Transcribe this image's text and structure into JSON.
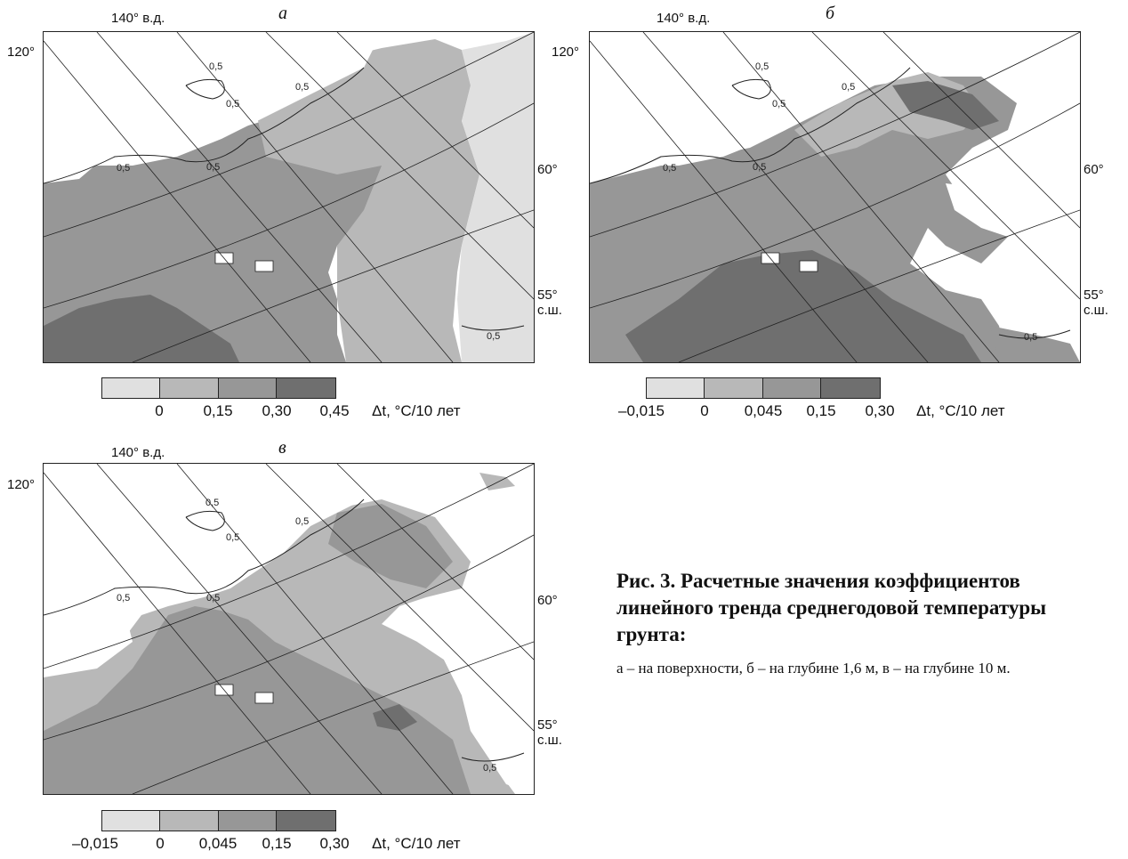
{
  "panels": [
    {
      "letter": "а",
      "lon_label": "140° в.д.",
      "lat_top": "120°",
      "lat_mid": "60°",
      "lat_bottom_1": "55°",
      "lat_bottom_2": "с.ш.",
      "contour_label": "0,5",
      "legend_ticks": [
        "0",
        "0,15",
        "0,30",
        "0,45"
      ],
      "unit": "Δt, °C/10 лет"
    },
    {
      "letter": "б",
      "lon_label": "140° в.д.",
      "lat_top": "120°",
      "lat_mid": "60°",
      "lat_bottom_1": "55°",
      "lat_bottom_2": "с.ш.",
      "contour_label": "0,5",
      "legend_ticks": [
        "–0,015",
        "0",
        "0,045",
        "0,15",
        "0,30"
      ],
      "unit": "Δt, °C/10 лет"
    },
    {
      "letter": "в",
      "lon_label": "140° в.д.",
      "lat_top": "120°",
      "lat_mid": "60°",
      "lat_bottom_1": "55°",
      "lat_bottom_2": "с.ш.",
      "contour_label": "0,5",
      "legend_ticks": [
        "–0,015",
        "0",
        "0,045",
        "0,15",
        "0,30"
      ],
      "unit": "Δt, °C/10 лет"
    }
  ],
  "legend_colors": [
    "#e0e0e0",
    "#b8b8b8",
    "#979797",
    "#6f6f6f"
  ],
  "caption": {
    "title": "Рис. 3. Расчетные значения коэффициентов линейного тренда среднегодовой температуры грунта:",
    "text": "а – на поверхности, б – на глубине 1,6 м, в – на глубине 10 м."
  }
}
